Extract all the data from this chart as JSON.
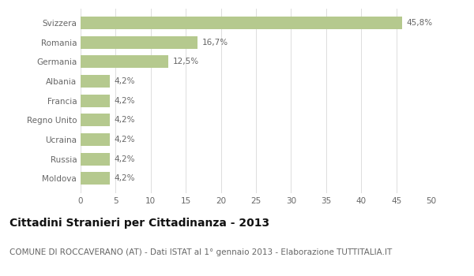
{
  "categories": [
    "Moldova",
    "Russia",
    "Ucraina",
    "Regno Unito",
    "Francia",
    "Albania",
    "Germania",
    "Romania",
    "Svizzera"
  ],
  "values": [
    4.2,
    4.2,
    4.2,
    4.2,
    4.2,
    4.2,
    12.5,
    16.7,
    45.8
  ],
  "labels": [
    "4,2%",
    "4,2%",
    "4,2%",
    "4,2%",
    "4,2%",
    "4,2%",
    "12,5%",
    "16,7%",
    "45,8%"
  ],
  "bar_color": "#b5c98e",
  "background_color": "#ffffff",
  "grid_color": "#d8d8d8",
  "title": "Cittadini Stranieri per Cittadinanza - 2013",
  "subtitle": "COMUNE DI ROCCAVERANO (AT) - Dati ISTAT al 1° gennaio 2013 - Elaborazione TUTTITALIA.IT",
  "title_fontsize": 10,
  "subtitle_fontsize": 7.5,
  "label_fontsize": 7.5,
  "tick_fontsize": 7.5,
  "ytick_fontsize": 7.5,
  "xlim": [
    0,
    50
  ],
  "xticks": [
    0,
    5,
    10,
    15,
    20,
    25,
    30,
    35,
    40,
    45,
    50
  ],
  "text_color": "#666666",
  "bar_height": 0.65
}
